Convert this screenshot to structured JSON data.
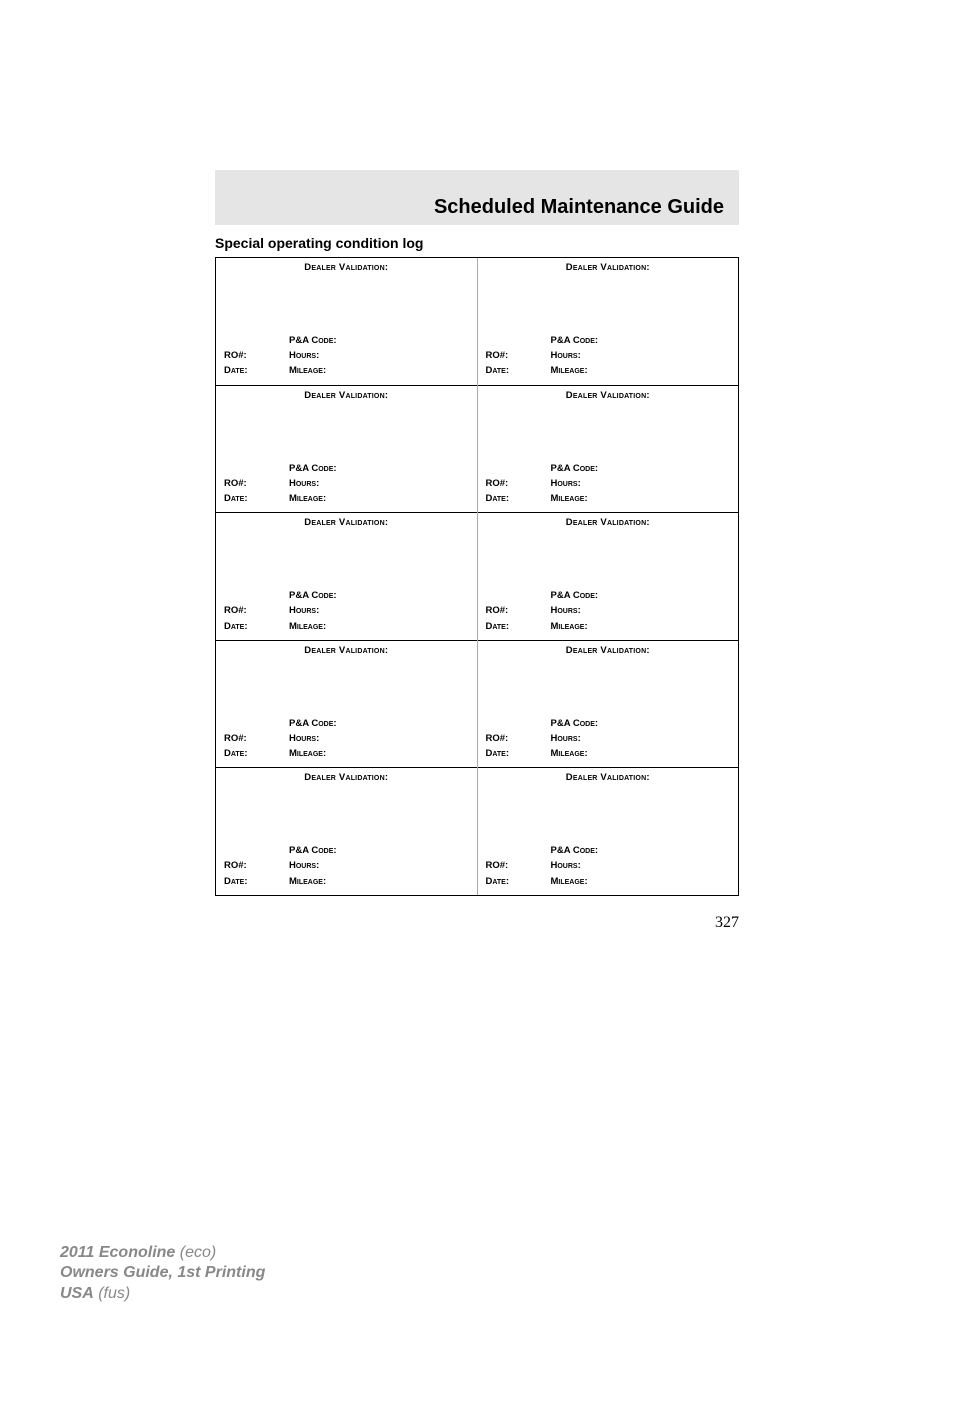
{
  "title": "Scheduled Maintenance Guide",
  "subtitle": "Special operating condition log",
  "page_number": "327",
  "cell_labels": {
    "dealer_validation": "Dealer Validation:",
    "pa_code": "P&A Code:",
    "ro": "RO#:",
    "hours": "Hours:",
    "date": "Date:",
    "mileage": "Mileage:"
  },
  "rows": 5,
  "footer": {
    "line1_bold": "2011 Econoline",
    "line1_italic": " (eco)",
    "line2": "Owners Guide, 1st Printing",
    "line3_bold": "USA",
    "line3_italic": " (fus)"
  }
}
